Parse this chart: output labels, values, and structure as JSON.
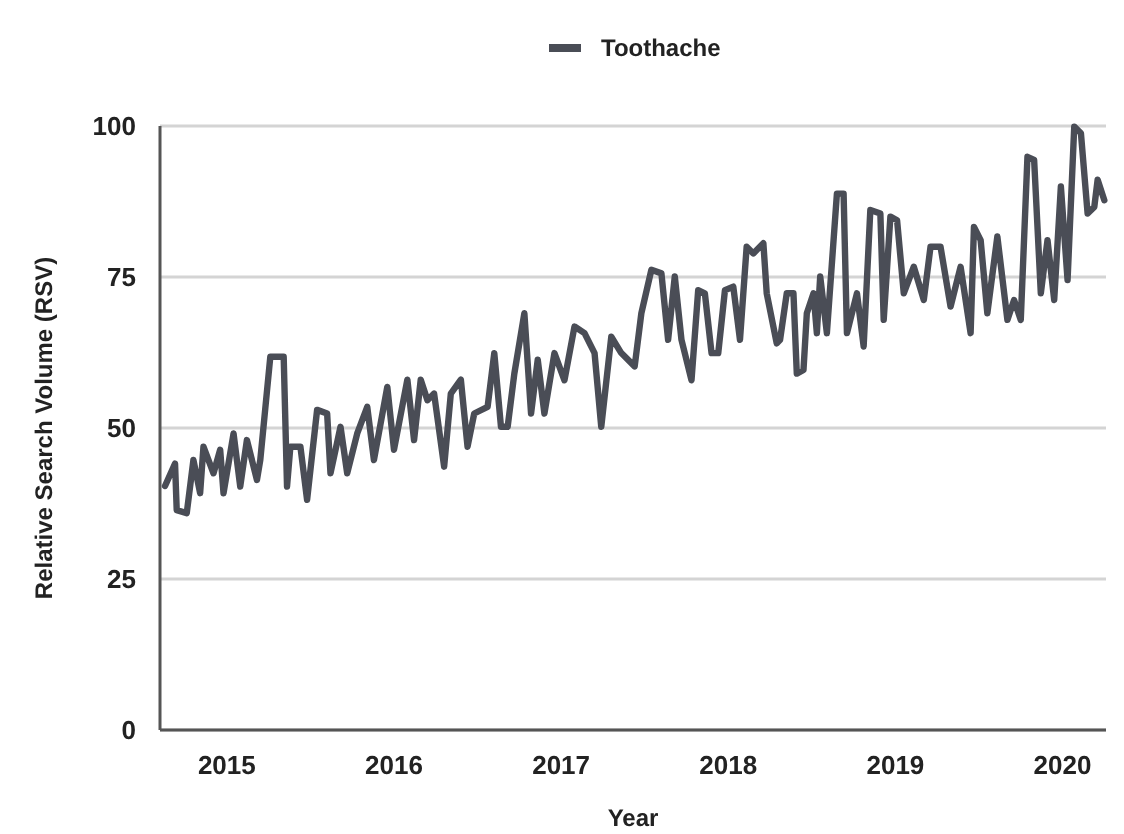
{
  "chart_data": {
    "type": "line",
    "xlabel": "Year",
    "ylabel": "Relative Search Volume (RSV)",
    "xlim": [
      2014.6,
      2020.26
    ],
    "xticks": [
      2015,
      2016,
      2017,
      2018,
      2019,
      2020
    ],
    "ylim": [
      0,
      100
    ],
    "yticks": [
      0,
      25,
      50,
      75,
      100
    ],
    "grid": "y",
    "legend": "top",
    "marker": "none",
    "line_style": "solid",
    "series": [
      {
        "name": "Toothache",
        "color": "#4a4d56",
        "x": [
          2014.63,
          2014.69,
          2014.7,
          2014.76,
          2014.8,
          2014.84,
          2014.86,
          2014.92,
          2014.96,
          2014.98,
          2015.04,
          2015.08,
          2015.12,
          2015.18,
          2015.2,
          2015.26,
          2015.34,
          2015.36,
          2015.38,
          2015.44,
          2015.48,
          2015.54,
          2015.6,
          2015.62,
          2015.68,
          2015.72,
          2015.78,
          2015.84,
          2015.88,
          2015.96,
          2016.0,
          2016.08,
          2016.12,
          2016.16,
          2016.2,
          2016.24,
          2016.3,
          2016.34,
          2016.4,
          2016.44,
          2016.48,
          2016.56,
          2016.6,
          2016.64,
          2016.68,
          2016.72,
          2016.78,
          2016.82,
          2016.86,
          2016.9,
          2016.96,
          2017.02,
          2017.08,
          2017.14,
          2017.2,
          2017.24,
          2017.3,
          2017.36,
          2017.44,
          2017.48,
          2017.54,
          2017.6,
          2017.64,
          2017.68,
          2017.72,
          2017.78,
          2017.82,
          2017.86,
          2017.9,
          2017.94,
          2017.98,
          2018.03,
          2018.07,
          2018.11,
          2018.15,
          2018.21,
          2018.23,
          2018.29,
          2018.31,
          2018.35,
          2018.39,
          2018.41,
          2018.45,
          2018.47,
          2018.51,
          2018.53,
          2018.55,
          2018.59,
          2018.65,
          2018.69,
          2018.71,
          2018.77,
          2018.81,
          2018.85,
          2018.91,
          2018.93,
          2018.97,
          2019.01,
          2019.05,
          2019.11,
          2019.17,
          2019.21,
          2019.27,
          2019.33,
          2019.39,
          2019.45,
          2019.47,
          2019.51,
          2019.55,
          2019.61,
          2019.67,
          2019.71,
          2019.75,
          2019.79,
          2019.83,
          2019.87,
          2019.91,
          2019.95,
          2019.99,
          2020.03,
          2020.07,
          2020.11,
          2020.15,
          2020.19,
          2020.21,
          2020.25
        ],
        "values": [
          40.4,
          44.1,
          36.4,
          35.9,
          44.7,
          39.2,
          46.9,
          42.5,
          46.4,
          39.2,
          49.1,
          40.3,
          48.0,
          41.4,
          44.7,
          61.8,
          61.8,
          40.3,
          46.9,
          46.9,
          38.1,
          53.0,
          52.4,
          42.5,
          50.2,
          42.5,
          49.1,
          53.5,
          44.7,
          56.8,
          46.4,
          58.0,
          48.0,
          58.0,
          54.6,
          55.7,
          43.6,
          55.7,
          58.0,
          46.9,
          52.4,
          53.5,
          62.4,
          50.2,
          50.2,
          59.0,
          69.0,
          52.4,
          61.3,
          52.4,
          62.4,
          57.9,
          66.8,
          65.7,
          62.4,
          50.2,
          65.1,
          62.4,
          60.2,
          69.0,
          76.2,
          75.6,
          64.6,
          75.1,
          64.6,
          57.9,
          72.8,
          72.3,
          62.4,
          62.4,
          72.8,
          73.4,
          64.6,
          80.0,
          78.9,
          80.6,
          72.3,
          64.0,
          64.6,
          72.3,
          72.3,
          59.0,
          59.6,
          69.0,
          72.3,
          65.7,
          75.1,
          65.7,
          88.8,
          88.8,
          65.7,
          72.3,
          63.5,
          86.1,
          85.5,
          67.9,
          85.0,
          84.4,
          72.3,
          76.7,
          71.2,
          80.0,
          80.0,
          70.1,
          76.7,
          65.7,
          83.3,
          81.1,
          69.0,
          81.7,
          67.9,
          71.2,
          67.9,
          94.9,
          94.4,
          72.3,
          81.1,
          71.2,
          90.0,
          74.5,
          99.9,
          98.8,
          85.5,
          86.6,
          91.1,
          87.7
        ]
      }
    ]
  }
}
